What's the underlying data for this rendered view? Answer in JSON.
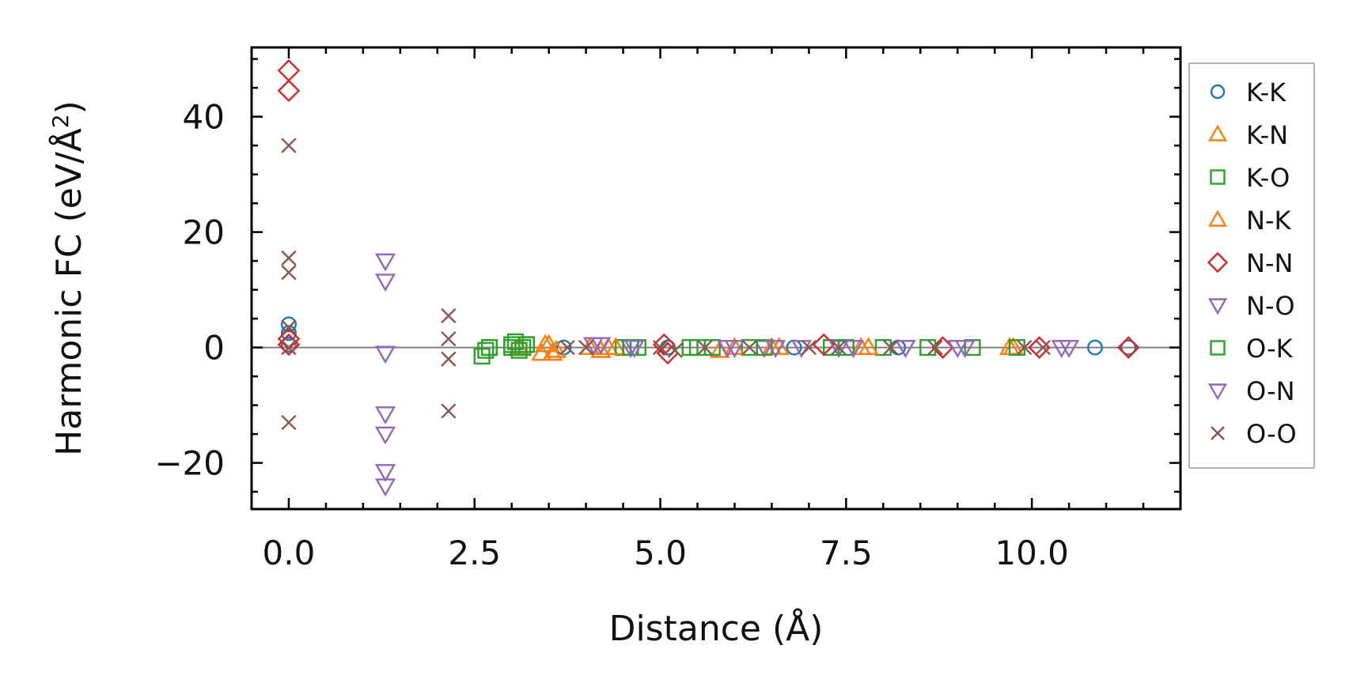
{
  "chart_data": {
    "type": "scatter",
    "title": "",
    "xlabel": "Distance (Å)",
    "ylabel_main": "Harmonic FC (eV/Å",
    "ylabel_sup": "2",
    "ylabel_close": ")",
    "xlim": [
      -0.5,
      12.0
    ],
    "ylim": [
      -28,
      52
    ],
    "xticks": [
      0.0,
      2.5,
      5.0,
      7.5,
      10.0
    ],
    "xtick_labels": [
      "0.0",
      "2.5",
      "5.0",
      "7.5",
      "10.0"
    ],
    "yticks": [
      -20,
      0,
      20,
      40
    ],
    "ytick_labels": [
      "−20",
      "0",
      "20",
      "40"
    ],
    "zero_line": 0,
    "legend_position": "outside-right",
    "series": [
      {
        "name": "K-K",
        "marker": "circle",
        "color": "#1f77b4",
        "x": [
          0.0,
          0.0,
          0.0,
          3.7,
          5.1,
          6.8,
          8.2,
          10.85,
          11.3
        ],
        "y": [
          4.0,
          2.5,
          0.5,
          0.0,
          0.0,
          0.0,
          0.0,
          0.0,
          0.0
        ]
      },
      {
        "name": "K-N",
        "marker": "triangle-up",
        "color": "#ff7f0e",
        "x": [
          3.1,
          3.4,
          3.5,
          3.6,
          4.2,
          4.3,
          5.8,
          6.6,
          7.7,
          9.7
        ],
        "y": [
          0.0,
          -1.0,
          0.5,
          -0.5,
          -0.5,
          0.0,
          -0.5,
          0.0,
          0.0,
          0.0
        ]
      },
      {
        "name": "K-O",
        "marker": "square",
        "color": "#2ca02c",
        "x": [
          2.6,
          2.65,
          2.7,
          3.0,
          3.05,
          3.1,
          3.15,
          3.2,
          4.5,
          4.7,
          5.4,
          5.7,
          6.2,
          7.3,
          8.0,
          9.2
        ],
        "y": [
          -1.5,
          -0.5,
          0.0,
          0.5,
          1.0,
          -0.5,
          0.0,
          0.5,
          0.0,
          0.0,
          0.0,
          0.0,
          0.0,
          0.0,
          0.0,
          0.0
        ]
      },
      {
        "name": "N-K",
        "marker": "triangle-up",
        "color": "#ff7f0e",
        "x": [
          3.45,
          3.55,
          4.05,
          4.4,
          6.0,
          6.5,
          7.8,
          9.75
        ],
        "y": [
          0.5,
          -1.0,
          0.0,
          0.0,
          0.0,
          0.0,
          0.0,
          0.0
        ]
      },
      {
        "name": "N-N",
        "marker": "diamond",
        "color": "#d62728",
        "x": [
          0.0,
          0.0,
          0.0,
          0.0,
          5.05,
          5.1,
          7.2,
          8.8,
          10.1,
          11.3
        ],
        "y": [
          48.0,
          44.5,
          1.5,
          0.5,
          0.5,
          -1.0,
          0.5,
          0.0,
          0.0,
          0.0
        ]
      },
      {
        "name": "N-O",
        "marker": "triangle-down",
        "color": "#9467bd",
        "x": [
          1.3,
          1.3,
          1.3,
          1.3,
          1.3,
          1.3,
          1.3,
          4.1,
          4.6,
          6.0,
          6.4,
          7.4,
          8.3,
          9.0,
          10.4
        ],
        "y": [
          15.0,
          11.5,
          -1.0,
          -11.5,
          -15.0,
          -21.5,
          -24.0,
          0.5,
          0.0,
          0.0,
          0.0,
          0.0,
          0.0,
          0.0,
          0.0
        ]
      },
      {
        "name": "O-K",
        "marker": "square",
        "color": "#2ca02c",
        "x": [
          2.7,
          3.0,
          3.2,
          4.6,
          5.5,
          6.4,
          7.5,
          8.6,
          9.8
        ],
        "y": [
          0.0,
          0.0,
          0.5,
          0.0,
          0.0,
          0.0,
          0.0,
          0.0,
          0.0
        ]
      },
      {
        "name": "O-N",
        "marker": "triangle-down",
        "color": "#9467bd",
        "x": [
          4.2,
          4.65,
          5.9,
          6.55,
          6.9,
          7.6,
          8.3,
          9.1,
          10.5
        ],
        "y": [
          0.5,
          0.0,
          0.0,
          0.0,
          0.0,
          0.0,
          0.0,
          0.0,
          0.0
        ]
      },
      {
        "name": "O-O",
        "marker": "x",
        "color": "#8c564b",
        "x": [
          0.0,
          0.0,
          0.0,
          0.0,
          0.0,
          0.0,
          2.15,
          2.15,
          2.15,
          2.15,
          3.75,
          4.0,
          5.0,
          5.2,
          5.6,
          6.2,
          7.0,
          7.4,
          8.1,
          8.7,
          9.9,
          10.15
        ],
        "y": [
          35.0,
          15.5,
          13.0,
          3.5,
          0.0,
          -13.0,
          5.5,
          1.5,
          -2.0,
          -11.0,
          0.0,
          0.0,
          0.0,
          -0.5,
          0.0,
          0.0,
          0.0,
          0.0,
          0.0,
          0.0,
          0.0,
          0.0
        ]
      }
    ]
  }
}
